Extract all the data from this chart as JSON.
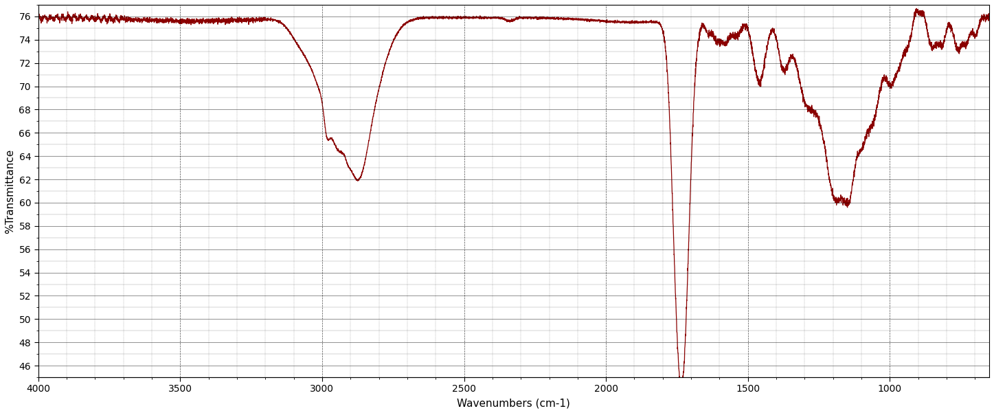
{
  "xlabel": "Wavenumbers (cm-1)",
  "ylabel": "%Transmittance",
  "xlim_left": 4000,
  "xlim_right": 650,
  "ylim": [
    45,
    77
  ],
  "line_color": "#8B0000",
  "background_color": "#ffffff",
  "plot_background": "#ffffff",
  "xticks": [
    4000,
    3500,
    3000,
    2500,
    2000,
    1500,
    1000
  ],
  "yticks": [
    46,
    48,
    50,
    52,
    54,
    56,
    58,
    60,
    62,
    64,
    66,
    68,
    70,
    72,
    74,
    76
  ],
  "seed": 42
}
